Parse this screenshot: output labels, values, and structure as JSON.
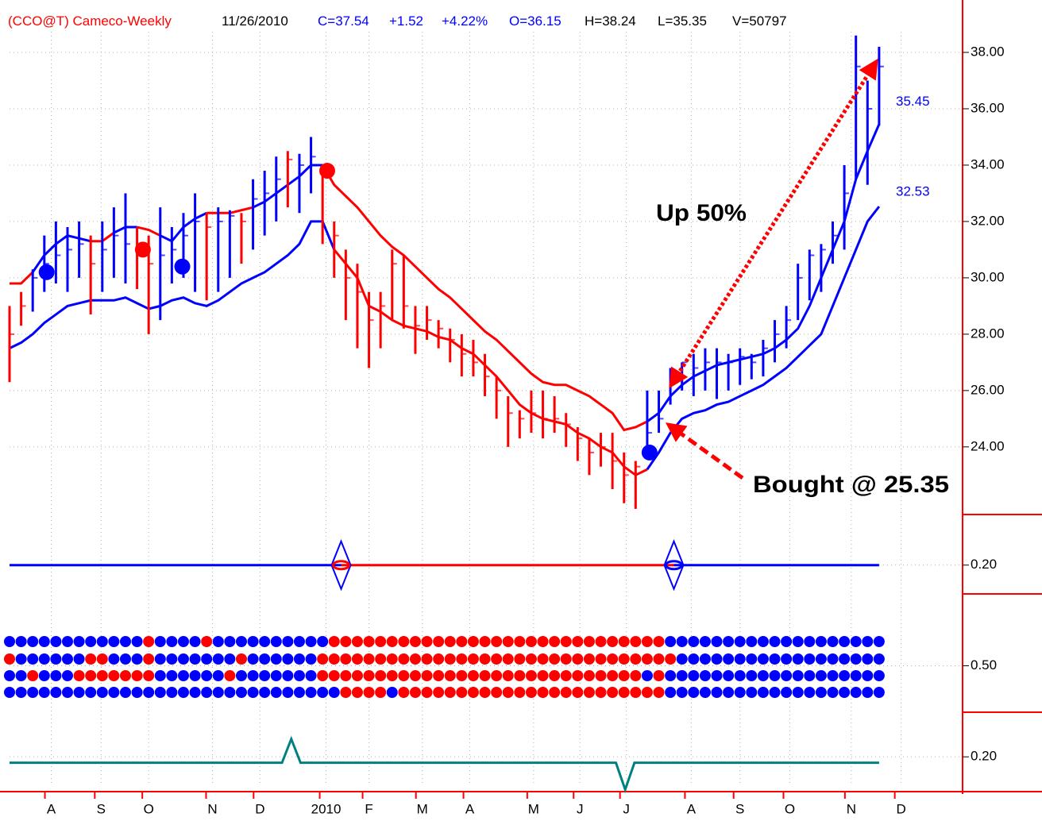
{
  "chart_data": {
    "type": "ohlc",
    "header": [
      {
        "text": "(CCO@T) Cameco-Weekly",
        "color": "#ff0000"
      },
      {
        "text": "11/26/2010",
        "color": "#000000"
      },
      {
        "text": "C=37.54",
        "color": "#0000ff"
      },
      {
        "text": "+1.52",
        "color": "#0000ff"
      },
      {
        "text": "+4.22%",
        "color": "#0000ff"
      },
      {
        "text": "O=36.15",
        "color": "#0000ff"
      },
      {
        "text": "H=38.24",
        "color": "#000000"
      },
      {
        "text": "L=35.35",
        "color": "#000000"
      },
      {
        "text": "V=50797",
        "color": "#000000"
      }
    ],
    "annotations": [
      "Up 50%",
      "Bought @ 25.35"
    ],
    "palette": {
      "r": "#ff0000",
      "b": "#0000ff"
    },
    "xlim": [
      0,
      82.2
    ],
    "xticks": [
      {
        "value": 3.6,
        "label": "A"
      },
      {
        "value": 7.9,
        "label": "S"
      },
      {
        "value": 12.0,
        "label": "O"
      },
      {
        "value": 17.5,
        "label": "N"
      },
      {
        "value": 21.6,
        "label": "D"
      },
      {
        "value": 27.3,
        "label": "2010"
      },
      {
        "value": 31.0,
        "label": "F"
      },
      {
        "value": 35.6,
        "label": "M"
      },
      {
        "value": 39.7,
        "label": "A"
      },
      {
        "value": 45.2,
        "label": "M"
      },
      {
        "value": 49.2,
        "label": "J"
      },
      {
        "value": 53.2,
        "label": "J"
      },
      {
        "value": 58.8,
        "label": "A"
      },
      {
        "value": 63.0,
        "label": "S"
      },
      {
        "value": 67.3,
        "label": "O"
      },
      {
        "value": 72.6,
        "label": "N"
      },
      {
        "value": 76.9,
        "label": "D"
      }
    ],
    "ylim": [
      21.6,
      39.86
    ],
    "yticks": [
      {
        "value": 24,
        "label": "24.00"
      },
      {
        "value": 26,
        "label": "26.00"
      },
      {
        "value": 28,
        "label": "28.00"
      },
      {
        "value": 30,
        "label": "30.00"
      },
      {
        "value": 32,
        "label": "32.00"
      },
      {
        "value": 34,
        "label": "34.00"
      },
      {
        "value": 36,
        "label": "36.00"
      },
      {
        "value": 38,
        "label": "38.00"
      }
    ],
    "grid": true,
    "high": [
      29.0,
      29.5,
      30.3,
      31.5,
      32.0,
      31.8,
      32.0,
      31.5,
      32.0,
      32.5,
      33.0,
      31.8,
      31.5,
      32.5,
      31.8,
      32.3,
      33.0,
      32.3,
      32.5,
      32.4,
      32.3,
      33.5,
      33.8,
      34.3,
      34.5,
      34.4,
      35.0,
      34.0,
      32.0,
      31.0,
      30.5,
      29.5,
      29.5,
      31.0,
      30.8,
      29.0,
      29.0,
      28.5,
      28.2,
      28.0,
      27.8,
      27.3,
      26.5,
      25.8,
      25.3,
      26.0,
      26.0,
      25.8,
      25.2,
      24.7,
      24.3,
      24.5,
      24.5,
      23.8,
      23.5,
      26.0,
      26.0,
      26.8,
      27.0,
      27.3,
      27.5,
      27.5,
      27.3,
      27.5,
      27.3,
      27.8,
      28.5,
      29.0,
      30.5,
      31.0,
      31.2,
      32.0,
      34.0,
      38.6,
      37.0,
      38.2
    ],
    "low": [
      26.3,
      28.3,
      28.8,
      29.5,
      29.8,
      29.5,
      30.0,
      28.7,
      29.5,
      30.0,
      29.8,
      29.6,
      28.0,
      28.5,
      29.8,
      30.0,
      29.5,
      29.2,
      29.5,
      30.0,
      30.5,
      31.0,
      31.5,
      32.0,
      32.5,
      32.3,
      33.0,
      31.2,
      30.0,
      28.5,
      27.5,
      26.8,
      27.5,
      28.5,
      28.2,
      27.3,
      27.8,
      27.5,
      27.0,
      26.5,
      26.5,
      25.8,
      25.0,
      24.0,
      24.3,
      24.5,
      24.3,
      24.5,
      24.0,
      23.5,
      23.0,
      23.3,
      22.5,
      22.0,
      21.8,
      23.8,
      24.5,
      25.5,
      26.0,
      25.8,
      26.0,
      25.7,
      26.0,
      26.2,
      26.4,
      26.5,
      27.0,
      27.5,
      28.5,
      29.2,
      29.5,
      30.5,
      31.0,
      33.5,
      33.3,
      35.4
    ],
    "close": [
      28.0,
      29.0,
      30.0,
      30.5,
      30.8,
      31.0,
      31.2,
      30.5,
      31.0,
      31.5,
      31.2,
      31.0,
      30.5,
      30.8,
      31.0,
      31.5,
      32.0,
      31.8,
      32.0,
      32.2,
      32.0,
      32.8,
      33.0,
      33.5,
      34.2,
      34.0,
      34.3,
      33.6,
      31.5,
      30.0,
      29.5,
      28.5,
      29.0,
      30.5,
      29.0,
      28.3,
      28.5,
      28.2,
      27.8,
      27.3,
      27.0,
      26.5,
      26.0,
      25.2,
      25.0,
      25.2,
      25.0,
      25.0,
      24.8,
      24.3,
      23.8,
      24.0,
      23.5,
      23.0,
      23.3,
      24.5,
      25.0,
      26.5,
      27.0,
      26.8,
      27.0,
      27.0,
      27.0,
      27.2,
      27.0,
      27.5,
      28.0,
      28.5,
      30.0,
      30.8,
      31.0,
      31.5,
      33.0,
      37.5,
      36.0,
      37.5
    ],
    "bar_colors": "rrbbbbbrbbbrrbbbbrbbrbbbrbbrrrrrrrrrrrrrrrrrrrrrrrrrrrrbbbbbbbbbbbbbbbbbbbbb",
    "upper": [
      29.8,
      29.8,
      30.2,
      30.8,
      31.2,
      31.5,
      31.4,
      31.3,
      31.3,
      31.6,
      31.8,
      31.8,
      31.7,
      31.5,
      31.3,
      31.8,
      32.1,
      32.3,
      32.3,
      32.3,
      32.4,
      32.5,
      32.7,
      33.0,
      33.3,
      33.6,
      34.0,
      34.0,
      33.3,
      32.9,
      32.5,
      32.0,
      31.5,
      31.1,
      30.8,
      30.4,
      30.0,
      29.6,
      29.3,
      28.9,
      28.5,
      28.1,
      27.8,
      27.4,
      27.0,
      26.6,
      26.3,
      26.2,
      26.2,
      26.0,
      25.8,
      25.5,
      25.2,
      24.6,
      24.7,
      24.9,
      25.2,
      25.8,
      26.2,
      26.5,
      26.7,
      26.9,
      27.0,
      27.1,
      27.2,
      27.3,
      27.5,
      27.8,
      28.2,
      29.0,
      30.0,
      31.0,
      32.0,
      33.5,
      34.5,
      35.45
    ],
    "upper_colors": "rrbbbbbrrbbrrbbbbrrrrbbbbbbrrrrrrrrrrrrrrrrrrrrrrrrrrrrbbbbbbbbbbbbbbbbbbbbb",
    "lower": [
      27.5,
      27.7,
      28.0,
      28.4,
      28.7,
      29.0,
      29.1,
      29.2,
      29.2,
      29.2,
      29.3,
      29.1,
      28.9,
      29.0,
      29.2,
      29.3,
      29.1,
      29.0,
      29.2,
      29.5,
      29.8,
      30.0,
      30.2,
      30.5,
      30.8,
      31.2,
      32.0,
      32.0,
      31.0,
      30.5,
      30.0,
      29.0,
      28.8,
      28.5,
      28.3,
      28.2,
      28.1,
      27.9,
      27.8,
      27.5,
      27.3,
      26.9,
      26.5,
      26.0,
      25.5,
      25.2,
      25.0,
      24.9,
      24.8,
      24.5,
      24.3,
      24.0,
      23.8,
      23.3,
      23.0,
      23.2,
      23.8,
      24.5,
      25.0,
      25.2,
      25.3,
      25.5,
      25.6,
      25.8,
      26.0,
      26.2,
      26.5,
      26.8,
      27.2,
      27.6,
      28.0,
      29.0,
      30.0,
      31.0,
      32.0,
      32.53
    ],
    "lower_colors": "bbbbbbbbbbbbbbbbbbbbbbbbbbbbrrrrrrrrrrrrrrrrrrrrrrrrrrrbbbbbbbbbbbbbbbbbbbbb",
    "signals": [
      {
        "x": 3.2,
        "value": 30.2,
        "color": "b"
      },
      {
        "x": 11.5,
        "value": 31.0,
        "color": "r"
      },
      {
        "x": 14.9,
        "value": 30.4,
        "color": "b"
      },
      {
        "x": 27.4,
        "value": 33.8,
        "color": "r"
      },
      {
        "x": 55.2,
        "value": 23.8,
        "color": "b"
      }
    ],
    "panel2": {
      "ylim": [
        0.1,
        0.37
      ],
      "yticks": [
        {
          "value": 0.2,
          "label": "0.20"
        }
      ],
      "line_value": 0.2,
      "segments": [
        {
          "from": 0,
          "to": 28.6,
          "color": "b"
        },
        {
          "from": 28.6,
          "to": 57.3,
          "color": "r"
        },
        {
          "from": 57.3,
          "to": 75,
          "color": "b"
        }
      ],
      "markers": [
        {
          "x": 28.6,
          "color": "r"
        },
        {
          "x": 57.3,
          "color": "b"
        }
      ]
    },
    "panel3": {
      "yticks": [
        {
          "value": 0.5,
          "label": "0.50"
        }
      ],
      "ylim": [
        0,
        1
      ],
      "dot_rows": [
        "bbbbbbbbbbbbrbbbbrbbbbbbbbbbrrrrrrrrrrrrrrrrrrrrrrrrrrrrrbbbbbbbbbbbbbbbbbbb",
        "rbbbbbbrrbbbrbbbbbbbrbbbbbbrrrrrrrrrrrrrrrrrrrrrrrrrrrrrrrbbbbbbbbbbbbbbbbbb",
        "bbrbbbrrrrrrrbbbbbbrbbbbbbbrrrrrrrrrrrrrrrrrrrrrrrrrrrrbrbbbbbbbbbbbbbbbbbbb",
        "bbbbbbbbbbbbbbbbbbbbbbbbbbbbbrrrrbrrrrrrrrrrrrrrrrrrrrrrrbbbbbbbbbbbbbbbbbbb"
      ]
    },
    "panel4": {
      "ylim": [
        -1.05,
        1.7
      ],
      "yticks": [
        {
          "value": 0.2,
          "label": "0.20"
        }
      ],
      "color": "#008080",
      "x": [
        0,
        23.5,
        24.3,
        25.1,
        52.3,
        53.1,
        53.9,
        75
      ],
      "values": [
        0,
        0,
        0.8,
        0,
        0,
        -0.9,
        0,
        0
      ]
    }
  }
}
